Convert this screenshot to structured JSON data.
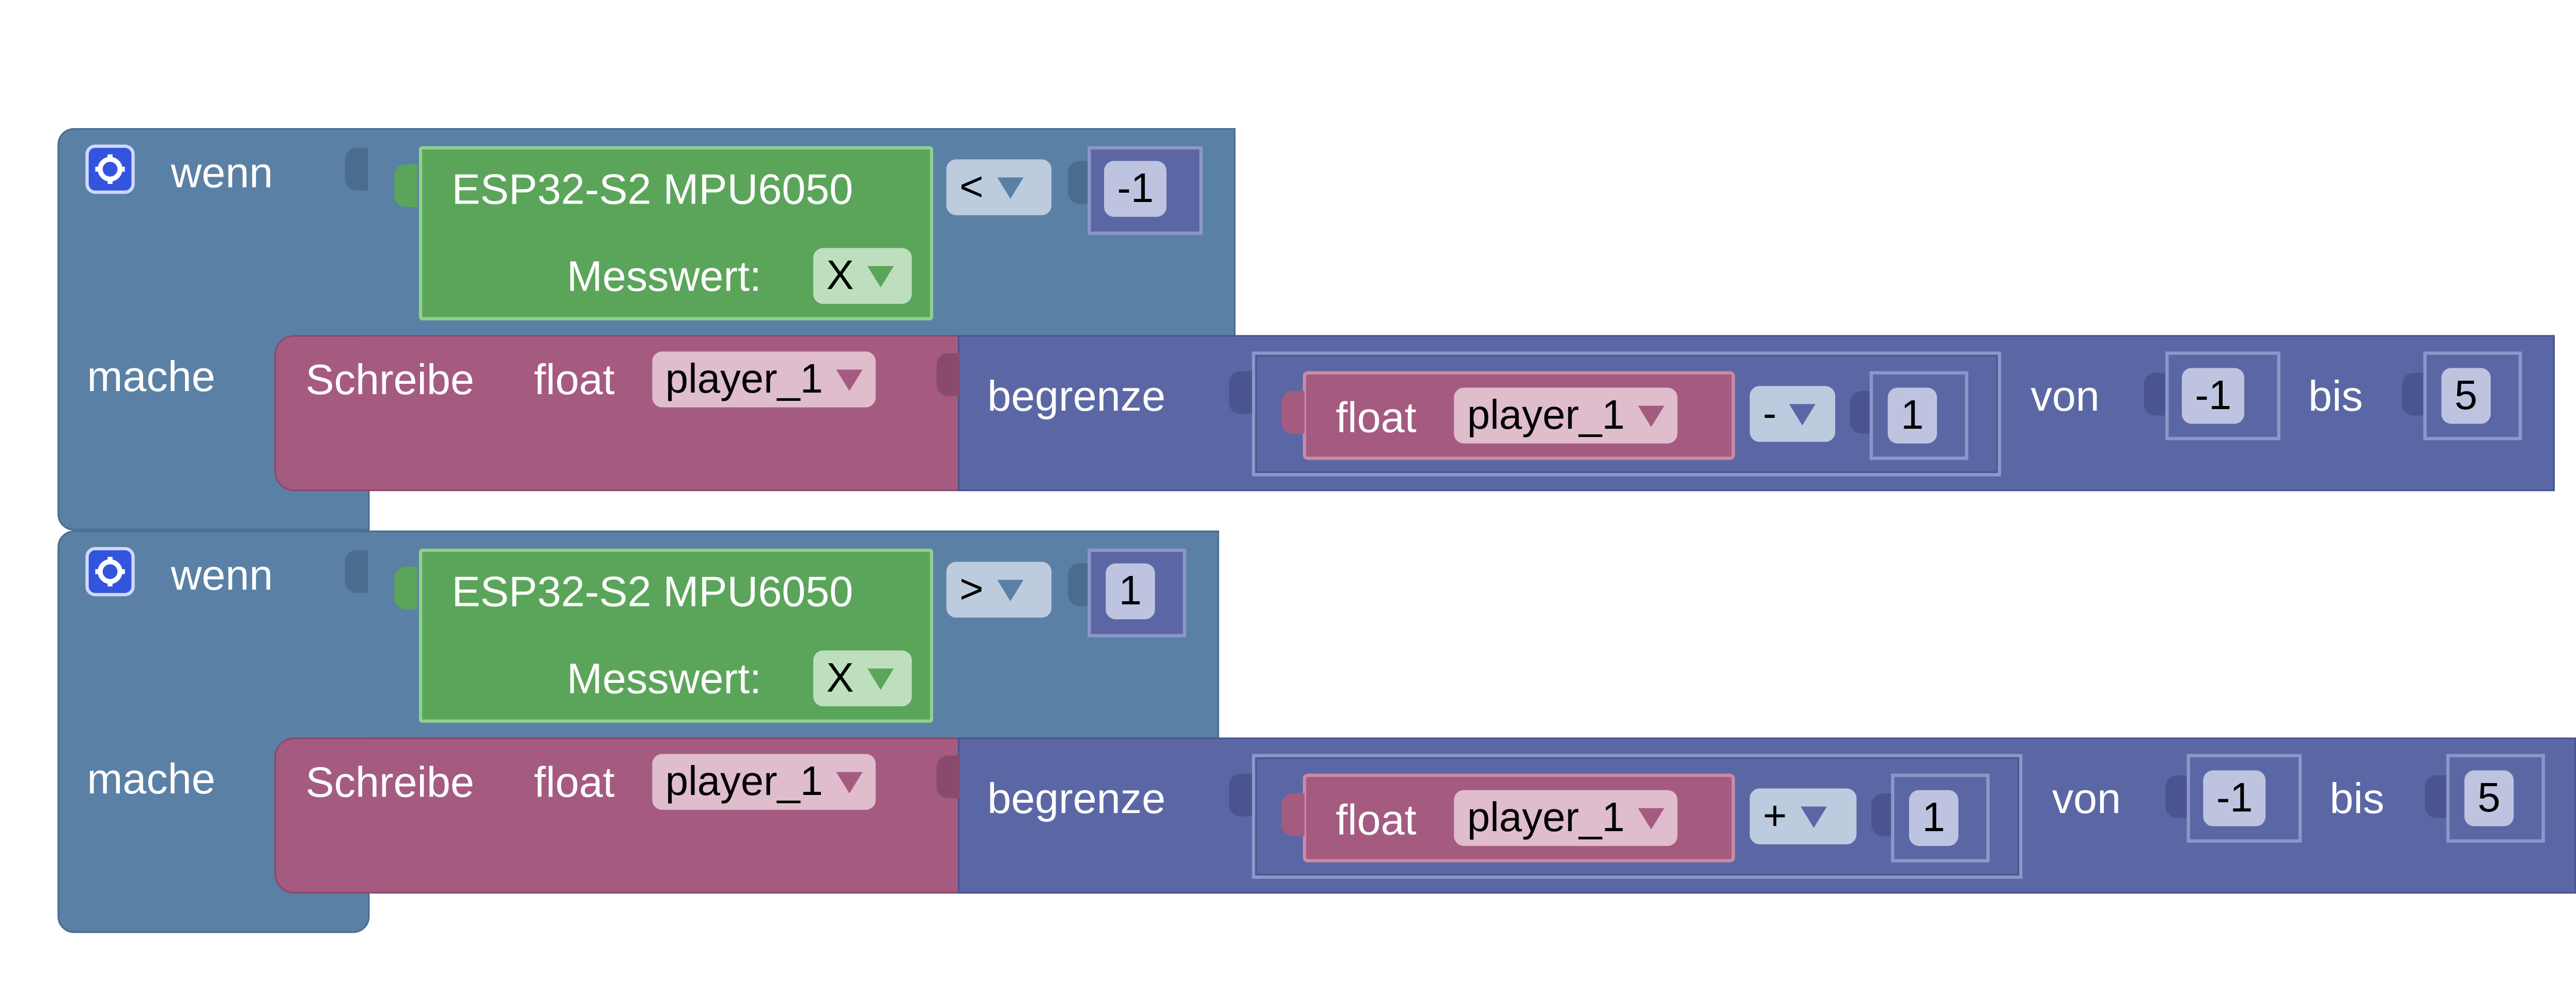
{
  "workspace": {
    "blocks": [
      {
        "if_label": "wenn",
        "do_label": "mache",
        "sensor_title": "ESP32-S2 MPU6050",
        "measure_label": "Messwert:",
        "measure_value": "X",
        "operator": "<",
        "compare_value": "-1",
        "write_label": "Schreibe",
        "type_label": "float",
        "variable": "player_1",
        "limit_label": "begrenze",
        "inner_type": "float",
        "inner_variable": "player_1",
        "math_operator": "-",
        "math_value": "1",
        "from_label": "von",
        "from_value": "-1",
        "to_label": "bis",
        "to_value": "5"
      },
      {
        "if_label": "wenn",
        "do_label": "mache",
        "sensor_title": "ESP32-S2 MPU6050",
        "measure_label": "Messwert:",
        "measure_value": "X",
        "operator": ">",
        "compare_value": "1",
        "write_label": "Schreibe",
        "type_label": "float",
        "variable": "player_1",
        "limit_label": "begrenze",
        "inner_type": "float",
        "inner_variable": "player_1",
        "math_operator": "+",
        "math_value": "1",
        "from_label": "von",
        "from_value": "-1",
        "to_label": "bis",
        "to_value": "5"
      }
    ]
  },
  "icons": {
    "mutator": "gear-icon",
    "dropdown": "dropdown-arrow-icon"
  },
  "colors": {
    "control": "#5b80a5",
    "sensor": "#5ba55b",
    "variable": "#a55b80",
    "math": "#5b67a5",
    "gear": "#3355dd"
  }
}
